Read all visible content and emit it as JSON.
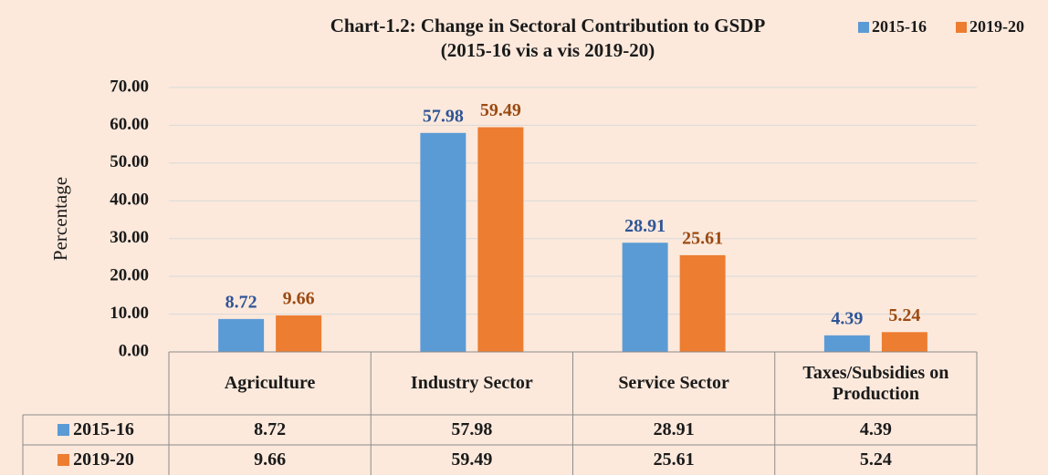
{
  "chart_data": {
    "type": "bar",
    "title": "Chart-1.2: Change in Sectoral Contribution to GSDP",
    "subtitle": "(2015-16 vis a vis 2019-20)",
    "y_label": "Percentage",
    "categories": [
      "Agriculture",
      "Industry Sector",
      "Service Sector",
      "Taxes/Subsidies on Production"
    ],
    "series": [
      {
        "name": "2015-16",
        "color": "#5b9bd5",
        "label_color": "#2f5597",
        "values": [
          8.72,
          57.98,
          28.91,
          4.39
        ]
      },
      {
        "name": "2019-20",
        "color": "#ed7d31",
        "label_color": "#9c4a12",
        "values": [
          9.66,
          59.49,
          25.61,
          5.24
        ]
      }
    ],
    "ylim": [
      0,
      70
    ],
    "yticks": [
      {
        "value": 0,
        "label": "0.00"
      },
      {
        "value": 10,
        "label": "10.00"
      },
      {
        "value": 20,
        "label": "20.00"
      },
      {
        "value": 30,
        "label": "30.00"
      },
      {
        "value": 40,
        "label": "40.00"
      },
      {
        "value": 50,
        "label": "50.00"
      },
      {
        "value": 60,
        "label": "60.00"
      },
      {
        "value": 70,
        "label": "70.00"
      }
    ],
    "grid": true,
    "legend": "top-right"
  }
}
